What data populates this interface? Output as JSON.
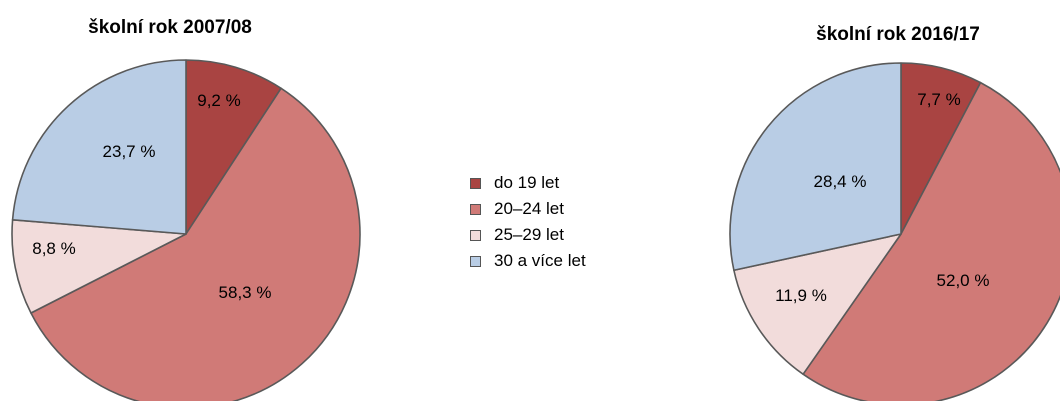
{
  "chart_data": [
    {
      "type": "pie",
      "title": "školní rok 2007/08",
      "categories": [
        "do 19 let",
        "20–24 let",
        "25–29 let",
        "30 a více let"
      ],
      "values": [
        9.2,
        58.3,
        8.8,
        23.7
      ],
      "labels": [
        "9,2 %",
        "58,3 %",
        "8,8 %",
        "23,7 %"
      ]
    },
    {
      "type": "pie",
      "title": "školní rok 2016/17",
      "categories": [
        "do 19 let",
        "20–24 let",
        "25–29 let",
        "30 a více let"
      ],
      "values": [
        7.7,
        52.0,
        11.9,
        28.4
      ],
      "labels": [
        "7,7 %",
        "52,0 %",
        "11,9 %",
        "28,4 %"
      ]
    }
  ],
  "legend": {
    "placement": "center",
    "items": [
      {
        "label": "do 19 let",
        "color": "#a94442"
      },
      {
        "label": "20–24 let",
        "color": "#d07a77"
      },
      {
        "label": "25–29 let",
        "color": "#f2dcdb"
      },
      {
        "label": "30 a více let",
        "color": "#b9cde5"
      }
    ]
  },
  "colors": {
    "slice_stroke": "#595959"
  }
}
